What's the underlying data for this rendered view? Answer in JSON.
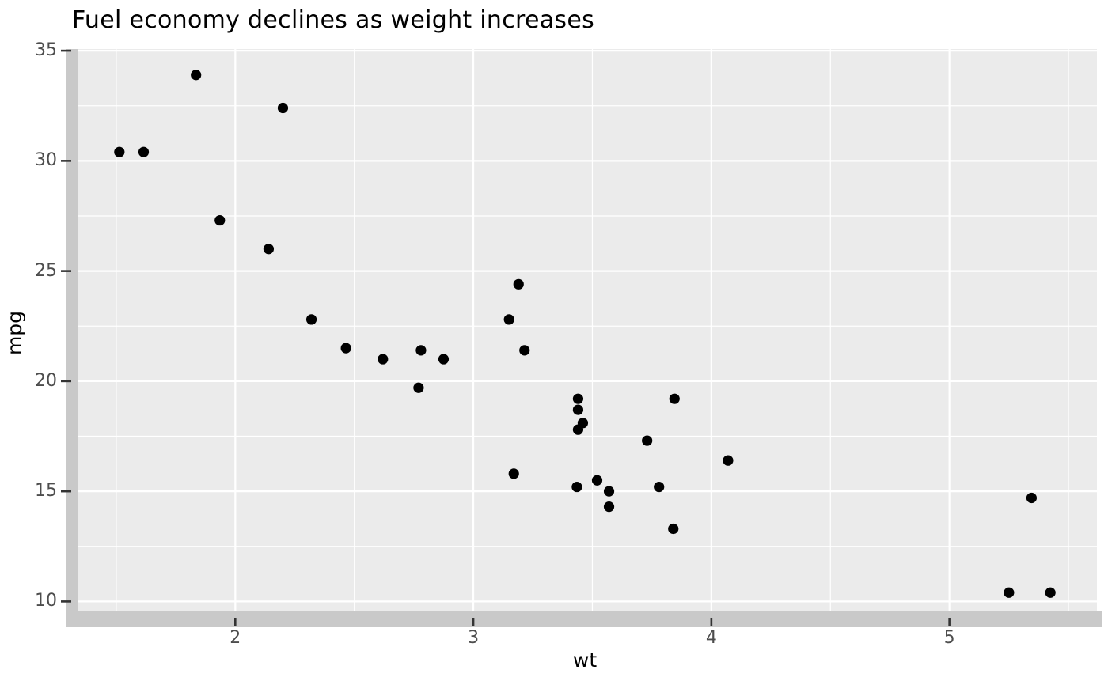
{
  "figure": {
    "background": "#ffffff"
  },
  "chart_data": {
    "type": "scatter",
    "title": "Fuel economy declines as weight increases",
    "xlabel": "wt",
    "ylabel": "mpg",
    "xlim": [
      1.3174,
      5.6196
    ],
    "ylim": [
      9.2245,
      35.0755
    ],
    "x_ticks": [
      2,
      3,
      4,
      5
    ],
    "y_ticks": [
      10,
      15,
      20,
      25,
      30,
      35
    ],
    "x_minor_ticks": [
      1.5,
      2.5,
      3.5,
      4.5,
      5.5
    ],
    "y_minor_ticks": [
      12.5,
      17.5,
      22.5,
      27.5,
      32.5
    ],
    "grid": true,
    "legend": false,
    "points": [
      [
        2.62,
        21.0
      ],
      [
        2.875,
        21.0
      ],
      [
        2.32,
        22.8
      ],
      [
        3.215,
        21.4
      ],
      [
        3.44,
        18.7
      ],
      [
        3.46,
        18.1
      ],
      [
        3.57,
        14.3
      ],
      [
        3.19,
        24.4
      ],
      [
        3.15,
        22.8
      ],
      [
        3.44,
        19.2
      ],
      [
        3.44,
        17.8
      ],
      [
        4.07,
        16.4
      ],
      [
        3.73,
        17.3
      ],
      [
        3.78,
        15.2
      ],
      [
        5.25,
        10.4
      ],
      [
        5.424,
        10.4
      ],
      [
        5.345,
        14.7
      ],
      [
        2.2,
        32.4
      ],
      [
        1.615,
        30.4
      ],
      [
        1.835,
        33.9
      ],
      [
        2.465,
        21.5
      ],
      [
        3.52,
        15.5
      ],
      [
        3.435,
        15.2
      ],
      [
        3.84,
        13.3
      ],
      [
        3.845,
        19.2
      ],
      [
        1.935,
        27.3
      ],
      [
        2.14,
        26.0
      ],
      [
        1.513,
        30.4
      ],
      [
        3.17,
        15.8
      ],
      [
        2.77,
        19.7
      ],
      [
        3.57,
        15.0
      ],
      [
        2.78,
        21.4
      ]
    ]
  },
  "style": {
    "panel_bg": "#ebebeb",
    "grid_color": "#ffffff",
    "point_color": "#000000",
    "shadow_color": "#c9c9c9",
    "tick_mark_color": "#333333",
    "tick_label_color": "#4d4d4d",
    "title_color": "#000000"
  }
}
